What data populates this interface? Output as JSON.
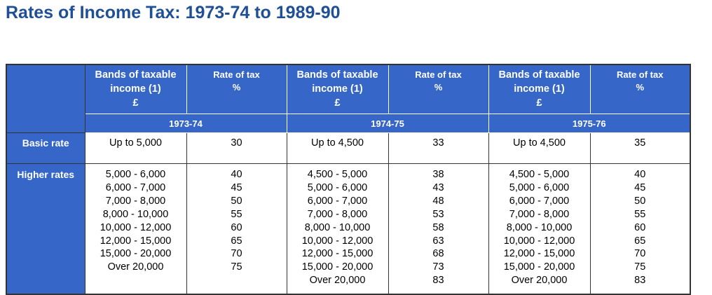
{
  "title": "Rates of Income Tax: 1973-74 to 1989-90",
  "table": {
    "row_labels": {
      "basic": "Basic rate",
      "higher": "Higher rates"
    },
    "periods": [
      {
        "band_header": [
          "Bands of taxable",
          "income (1)",
          "£"
        ],
        "rate_header": [
          "Rate of tax",
          "%"
        ],
        "year": "1973-74",
        "basic": {
          "band": "Up to 5,000",
          "rate": 30
        },
        "higher": [
          {
            "band": "5,000 - 6,000",
            "rate": 40
          },
          {
            "band": "6,000 - 7,000",
            "rate": 45
          },
          {
            "band": "7,000 - 8,000",
            "rate": 50
          },
          {
            "band": "8,000 - 10,000",
            "rate": 55
          },
          {
            "band": "10,000 - 12,000",
            "rate": 60
          },
          {
            "band": "12,000 - 15,000",
            "rate": 65
          },
          {
            "band": "15,000 - 20,000",
            "rate": 70
          },
          {
            "band": "Over 20,000",
            "rate": 75
          }
        ]
      },
      {
        "band_header": [
          "Bands of taxable",
          "income (1)",
          "£"
        ],
        "rate_header": [
          "Rate of tax",
          "%"
        ],
        "year": "1974-75",
        "basic": {
          "band": "Up to 4,500",
          "rate": 33
        },
        "higher": [
          {
            "band": "4,500 - 5,000",
            "rate": 38
          },
          {
            "band": "5,000 - 6,000",
            "rate": 43
          },
          {
            "band": "6,000 - 7,000",
            "rate": 48
          },
          {
            "band": "7,000 - 8,000",
            "rate": 53
          },
          {
            "band": "8,000 - 10,000",
            "rate": 58
          },
          {
            "band": "10,000 - 12,000",
            "rate": 63
          },
          {
            "band": "12,000 - 15,000",
            "rate": 68
          },
          {
            "band": "15,000 - 20,000",
            "rate": 73
          },
          {
            "band": "Over 20,000",
            "rate": 83
          }
        ]
      },
      {
        "band_header": [
          "Bands of taxable",
          "income (1)",
          "£"
        ],
        "rate_header": [
          "Rate of tax",
          "%"
        ],
        "year": "1975-76",
        "basic": {
          "band": "Up to 4,500",
          "rate": 35
        },
        "higher": [
          {
            "band": "4,500 - 5,000",
            "rate": 40
          },
          {
            "band": "5,000 - 6,000",
            "rate": 45
          },
          {
            "band": "6,000 - 7,000",
            "rate": 50
          },
          {
            "band": "7,000 - 8,000",
            "rate": 55
          },
          {
            "band": "8,000 - 10,000",
            "rate": 60
          },
          {
            "band": "10,000 - 12,000",
            "rate": 65
          },
          {
            "band": "12,000 - 15,000",
            "rate": 70
          },
          {
            "band": "15,000 - 20,000",
            "rate": 75
          },
          {
            "band": "Over 20,000",
            "rate": 83
          }
        ]
      }
    ]
  }
}
